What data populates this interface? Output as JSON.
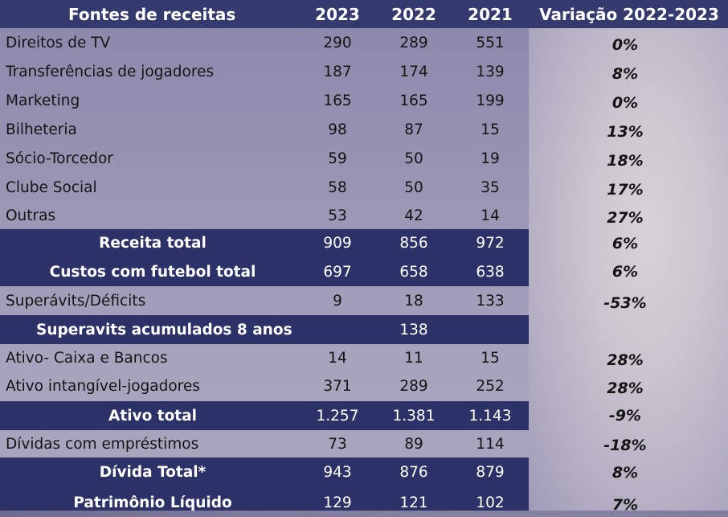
{
  "header": {
    "source_label": "Fontes de receitas",
    "y2023": "2023",
    "y2022": "2022",
    "y2021": "2021",
    "variation": "Variação 2022-2023"
  },
  "rows": [
    {
      "label": "Direitos de TV",
      "v2023": "290",
      "v2022": "289",
      "v2021": "551",
      "var": "0%"
    },
    {
      "label": "Transferências de jogadores",
      "v2023": "187",
      "v2022": "174",
      "v2021": "139",
      "var": "8%"
    },
    {
      "label": "Marketing",
      "v2023": "165",
      "v2022": "165",
      "v2021": "199",
      "var": "0%"
    },
    {
      "label": "Bilheteria",
      "v2023": "98",
      "v2022": "87",
      "v2021": "15",
      "var": "13%"
    },
    {
      "label": "Sócio-Torcedor",
      "v2023": "59",
      "v2022": "50",
      "v2021": "19",
      "var": "18%"
    },
    {
      "label": "Clube Social",
      "v2023": "58",
      "v2022": "50",
      "v2021": "35",
      "var": "17%"
    },
    {
      "label": "Outras",
      "v2023": "53",
      "v2022": "42",
      "v2021": "14",
      "var": "27%"
    },
    {
      "label": "Receita total",
      "v2023": "909",
      "v2022": "856",
      "v2021": "972",
      "var": "6%"
    },
    {
      "label": "Custos com futebol total",
      "v2023": "697",
      "v2022": "658",
      "v2021": "638",
      "var": "6%"
    },
    {
      "label": "Superávits/Déficits",
      "v2023": "9",
      "v2022": "18",
      "v2021": "133",
      "var": "-53%"
    },
    {
      "label": "Superavits acumulados 8 anos",
      "v2022": "138"
    },
    {
      "label": "Ativo- Caixa e Bancos",
      "v2023": "14",
      "v2022": "11",
      "v2021": "15",
      "var": "28%"
    },
    {
      "label": "Ativo intangível-jogadores",
      "v2023": "371",
      "v2022": "289",
      "v2021": "252",
      "var": "28%"
    },
    {
      "label": "Ativo total",
      "v2023": "1.257",
      "v2022": "1.381",
      "v2021": "1.143",
      "var": "-9%"
    },
    {
      "label": "Dívidas com empréstimos",
      "v2023": "73",
      "v2022": "89",
      "v2021": "114",
      "var": "-18%"
    },
    {
      "label": "Dívida Total*",
      "v2023": "943",
      "v2022": "876",
      "v2021": "879",
      "var": "8%"
    },
    {
      "label": "Patrimônio Líquido",
      "v2023": "129",
      "v2022": "121",
      "v2021": "102",
      "var": "7%"
    }
  ]
}
